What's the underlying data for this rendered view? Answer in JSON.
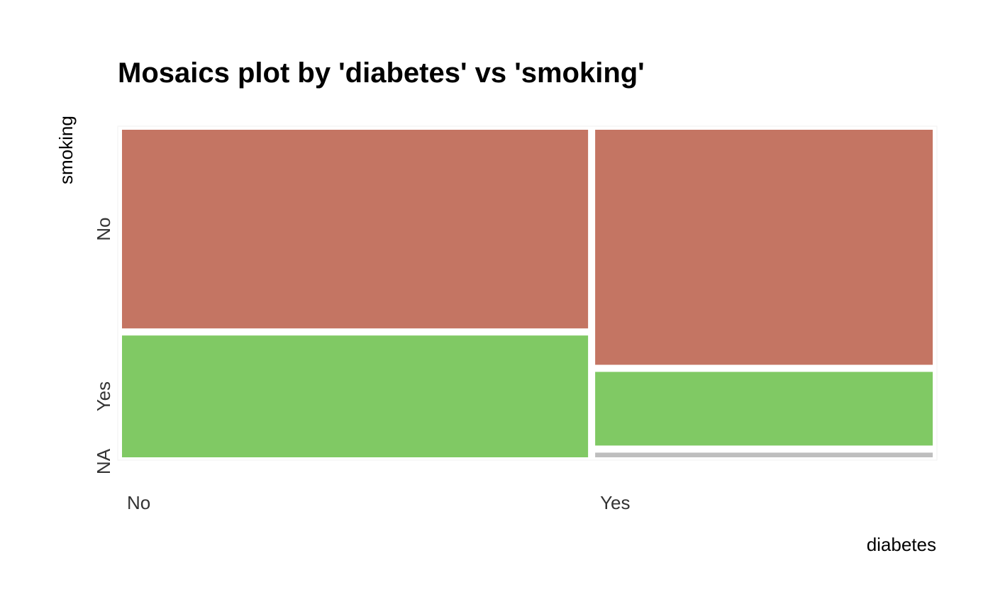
{
  "chart_data": {
    "type": "mosaic",
    "title": "Mosaics plot by 'diabetes' vs 'smoking'",
    "xlabel": "diabetes",
    "ylabel": "smoking",
    "x_categories": [
      "No",
      "Yes"
    ],
    "y_categories": [
      "No",
      "Yes",
      "NA"
    ],
    "x_proportions": [
      0.58,
      0.42
    ],
    "cells": [
      {
        "x": "No",
        "y": "No",
        "proportion": 0.62
      },
      {
        "x": "No",
        "y": "Yes",
        "proportion": 0.38
      },
      {
        "x": "No",
        "y": "NA",
        "proportion": 0.0
      },
      {
        "x": "Yes",
        "y": "No",
        "proportion": 0.75
      },
      {
        "x": "Yes",
        "y": "Yes",
        "proportion": 0.235
      },
      {
        "x": "Yes",
        "y": "NA",
        "proportion": 0.015
      }
    ],
    "colors": {
      "No": "#c47563",
      "Yes": "#80c964",
      "NA": "#bebebe"
    },
    "legend": "none",
    "grid": false
  }
}
